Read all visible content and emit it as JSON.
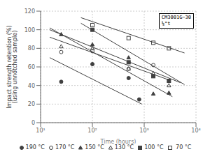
{
  "chart_data": {
    "type": "scatter",
    "xlabel": "Time (hours)",
    "ylabel": "Impact strength retention (%)\n(using unnotched sample)",
    "annotation": "CM3001G−30\n⅛°t",
    "log": "x",
    "grid": true,
    "legend": "bottom",
    "xlim": [
      10,
      10000
    ],
    "xticks": [
      {
        "value": 10,
        "label": "10¹"
      },
      {
        "value": 100,
        "label": "10²"
      },
      {
        "value": 1000,
        "label": "10³"
      },
      {
        "value": 10000,
        "label": "10⁴"
      }
    ],
    "ylim": [
      0,
      120
    ],
    "yticks": [
      0,
      20,
      40,
      60,
      80,
      100,
      120
    ],
    "series": [
      {
        "name": "190 °C",
        "marker": "filled_circle",
        "color": "#404040",
        "x": [
          25,
          100,
          500,
          800
        ],
        "values": [
          44,
          63,
          48,
          25
        ],
        "fit": {
          "x": [
            15,
            900
          ],
          "values": [
            70,
            20
          ]
        }
      },
      {
        "name": "170 °C",
        "marker": "open_circle",
        "color": "#404040",
        "x": [
          25,
          100,
          500,
          1500
        ],
        "values": [
          76,
          77,
          58,
          62
        ],
        "fit": {
          "x": [
            15,
            3000
          ],
          "values": [
            92,
            46
          ]
        }
      },
      {
        "name": "150 °C",
        "marker": "filled_triangle",
        "color": "#404040",
        "x": [
          25,
          100,
          500,
          1500,
          3000
        ],
        "values": [
          95,
          84,
          70,
          31,
          32
        ],
        "fit": {
          "x": [
            15,
            3500
          ],
          "values": [
            102,
            28
          ]
        }
      },
      {
        "name": "130 °C",
        "marker": "open_triangle",
        "color": "#404040",
        "x": [
          25,
          100,
          500,
          1500,
          3000
        ],
        "values": [
          82,
          80,
          58,
          53,
          40
        ],
        "fit": {
          "x": [
            15,
            5000
          ],
          "values": [
            100,
            43
          ]
        }
      },
      {
        "name": "100 °C",
        "marker": "filled_square",
        "color": "#404040",
        "x": [
          100,
          500,
          1500,
          3000
        ],
        "values": [
          100,
          65,
          50,
          45
        ],
        "fit": {
          "x": [
            60,
            6000
          ],
          "values": [
            107,
            41
          ]
        }
      },
      {
        "name": " 70 °C",
        "marker": "open_square",
        "color": "#404040",
        "x": [
          100,
          500,
          1500,
          3000
        ],
        "values": [
          105,
          91,
          86,
          80
        ],
        "fit": {
          "x": [
            60,
            6000
          ],
          "values": [
            113,
            75
          ]
        }
      }
    ]
  }
}
